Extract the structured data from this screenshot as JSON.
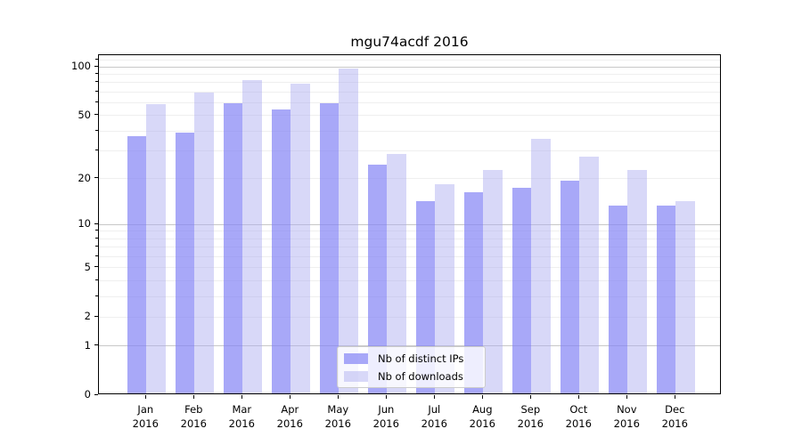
{
  "chart_data": {
    "type": "bar",
    "title": "mgu74acdf 2016",
    "scale": "log1p",
    "categories": [
      "Jan",
      "Feb",
      "Mar",
      "Apr",
      "May",
      "Jun",
      "Jul",
      "Aug",
      "Sep",
      "Oct",
      "Nov",
      "Dec"
    ],
    "category_year": "2016",
    "series": [
      {
        "name": "Nb of distinct IPs",
        "color": "rgba(131,131,245,0.7)",
        "color_rendered": "#a8a8f8",
        "values": [
          36,
          38,
          58,
          53,
          58,
          24,
          14,
          16,
          17,
          19,
          13,
          13
        ]
      },
      {
        "name": "Nb of downloads",
        "color": "rgba(168,168,239,0.45)",
        "color_rendered": "#d8d8f8",
        "values": [
          57,
          68,
          81,
          77,
          95,
          28,
          18,
          22,
          35,
          27,
          22,
          14
        ]
      }
    ],
    "xlabel": "",
    "ylabel": "",
    "ylim": [
      0,
      118
    ],
    "yticks": [
      0,
      1,
      2,
      5,
      10,
      20,
      50,
      100
    ],
    "major_gridlines": [
      1,
      10,
      100
    ],
    "minor_gridlines": [
      2,
      3,
      4,
      5,
      6,
      7,
      8,
      9,
      20,
      30,
      40,
      50,
      60,
      70,
      80,
      90,
      110
    ],
    "grid": true,
    "legend_position": "lower center"
  },
  "colors": {
    "major_grid": "#c8c8c8",
    "minor_grid": "#efefef",
    "axis": "#000000",
    "legend_border": "#cccccc",
    "legend_background": "rgba(255,255,255,0.8)"
  }
}
